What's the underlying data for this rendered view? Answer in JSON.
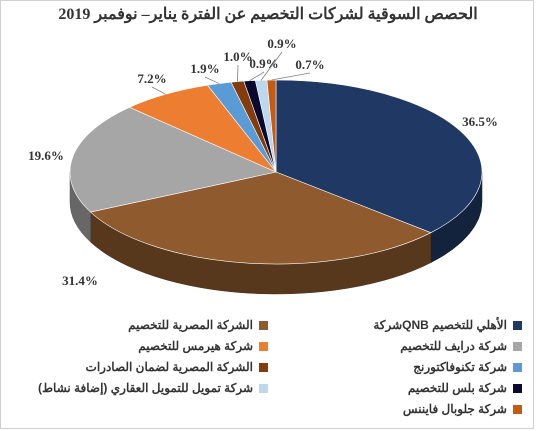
{
  "chart_data": {
    "type": "pie",
    "title": "الحصص السوقية لشركات التخصيم عن الفترة يناير– نوفمبر 2019",
    "slices": [
      {
        "name": "الأهلي للتخصيم QNBشركة",
        "value": 36.5,
        "label": "36.5%",
        "color": "#1f3864"
      },
      {
        "name": "الشركة المصرية للتخصيم",
        "value": 31.4,
        "label": "31.4%",
        "color": "#8e5a2e"
      },
      {
        "name": "شركة درايف للتخصيم",
        "value": 19.6,
        "label": "19.6%",
        "color": "#a6a6a6"
      },
      {
        "name": "شركة هيرمس للتخصيم",
        "value": 7.2,
        "label": "7.2%",
        "color": "#ed7d31"
      },
      {
        "name": "شركة تكنوفاكتورنج",
        "value": 1.9,
        "label": "1.9%",
        "color": "#5b9bd5"
      },
      {
        "name": "الشركة المصرية لضمان الصادرات",
        "value": 1.0,
        "label": "1.0%",
        "color": "#843c0c"
      },
      {
        "name": "شركة بلس للتخصيم",
        "value": 0.9,
        "label": "0.9%",
        "color": "#0a0a2e"
      },
      {
        "name": "شركة تمويل للتمويل العقاري (إضافة نشاط)",
        "value": 0.9,
        "label": "0.9%",
        "color": "#bdd7ee"
      },
      {
        "name": "شركة جلوبال فايننس",
        "value": 0.7,
        "label": "0.7%",
        "color": "#c55a11"
      }
    ],
    "legend_position": "bottom"
  }
}
